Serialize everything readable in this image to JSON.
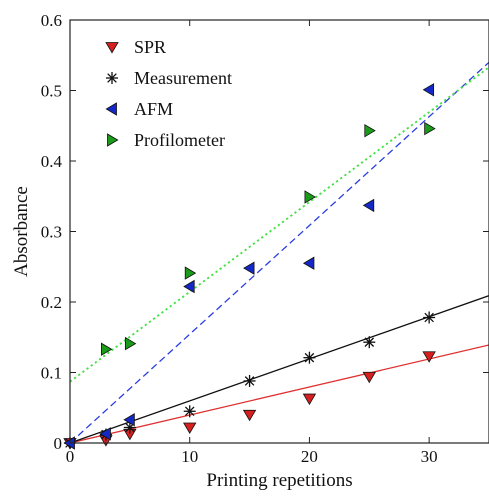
{
  "chart_data": {
    "type": "scatter",
    "title": "",
    "xlabel": "Printing repetitions",
    "ylabel": "Absorbance",
    "xlim": [
      0,
      35
    ],
    "ylim": [
      0,
      0.6
    ],
    "xticks": [
      0,
      10,
      20,
      30
    ],
    "xtick_labels": [
      "0",
      "10",
      "20",
      "30"
    ],
    "yticks": [
      0,
      0.1,
      0.2,
      0.3,
      0.4,
      0.5,
      0.6
    ],
    "ytick_labels": [
      "0",
      "0.1",
      "0.2",
      "0.3",
      "0.4",
      "0.5",
      "0.6"
    ],
    "grid": false,
    "legend_position": "top-left",
    "series": [
      {
        "name": "SPR",
        "marker": "triangle-down",
        "color": "#d62020",
        "x": [
          0,
          3,
          5,
          10,
          15,
          20,
          25,
          30
        ],
        "y": [
          0.0,
          0.004,
          0.013,
          0.022,
          0.04,
          0.063,
          0.094,
          0.123
        ],
        "fit": {
          "style": "solid",
          "color": "#e03030",
          "x": [
            0,
            35
          ],
          "y": [
            0.0,
            0.139
          ]
        }
      },
      {
        "name": "Measurement",
        "marker": "asterisk",
        "color": "#111111",
        "x": [
          0,
          3,
          5,
          10,
          15,
          20,
          25,
          30
        ],
        "y": [
          0.0,
          0.012,
          0.022,
          0.045,
          0.088,
          0.121,
          0.143,
          0.178
        ],
        "fit": {
          "style": "solid",
          "color": "#111111",
          "x": [
            0,
            35
          ],
          "y": [
            0.0,
            0.209
          ]
        }
      },
      {
        "name": "AFM",
        "marker": "triangle-left",
        "color": "#1428c8",
        "x": [
          0,
          3,
          5,
          10,
          15,
          20,
          25,
          30
        ],
        "y": [
          0.0,
          0.013,
          0.033,
          0.222,
          0.248,
          0.255,
          0.337,
          0.501
        ],
        "fit": {
          "style": "dashed",
          "color": "#2a3ee0",
          "x": [
            0,
            35
          ],
          "y": [
            0.0,
            0.54
          ]
        }
      },
      {
        "name": "Profilometer",
        "marker": "triangle-right",
        "color": "#1a9c1a",
        "x": [
          3,
          5,
          10,
          20,
          25,
          30
        ],
        "y": [
          0.133,
          0.141,
          0.241,
          0.349,
          0.443,
          0.446
        ],
        "fit": {
          "style": "dotted",
          "color": "#40e040",
          "x": [
            0,
            35
          ],
          "y": [
            0.087,
            0.533
          ]
        }
      }
    ]
  }
}
